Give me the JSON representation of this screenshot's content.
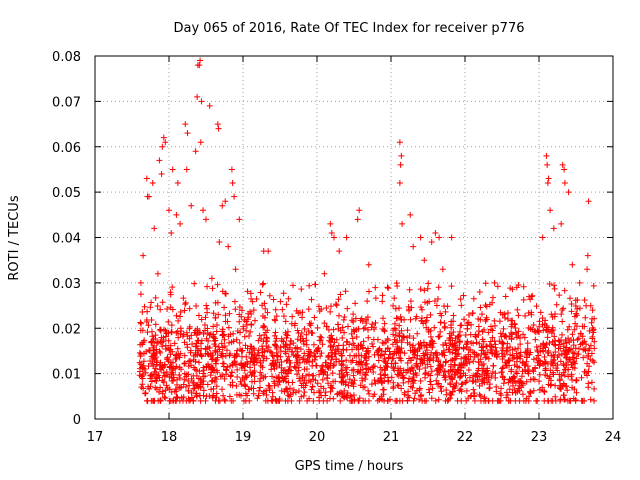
{
  "chart_data": {
    "type": "scatter",
    "title": "Day 065 of 2016, Rate Of TEC Index for receiver p776",
    "xlabel": "GPS time / hours",
    "ylabel": "ROTI / TECUs",
    "xlim": [
      17,
      24
    ],
    "ylim": [
      0,
      0.08
    ],
    "grid": true,
    "marker": "+",
    "color": "#ff0000",
    "x_ticks": [
      "17",
      "18",
      "19",
      "20",
      "21",
      "22",
      "23",
      "24"
    ],
    "y_ticks": [
      "0",
      "0.01",
      "0.02",
      "0.03",
      "0.04",
      "0.05",
      "0.06",
      "0.07",
      "0.08"
    ],
    "data_range": {
      "x_start": 17.6,
      "x_end": 23.75
    },
    "series": [
      {
        "name": "ROTI",
        "points": [
          [
            18.42,
            0.079
          ],
          [
            18.41,
            0.078
          ],
          [
            18.39,
            0.078
          ],
          [
            18.38,
            0.071
          ],
          [
            18.44,
            0.07
          ],
          [
            18.55,
            0.069
          ],
          [
            18.22,
            0.065
          ],
          [
            18.25,
            0.063
          ],
          [
            18.43,
            0.061
          ],
          [
            18.36,
            0.059
          ],
          [
            18.66,
            0.065
          ],
          [
            18.67,
            0.064
          ],
          [
            17.93,
            0.062
          ],
          [
            17.91,
            0.06
          ],
          [
            17.95,
            0.061
          ],
          [
            17.87,
            0.057
          ],
          [
            17.9,
            0.054
          ],
          [
            18.05,
            0.055
          ],
          [
            18.12,
            0.052
          ],
          [
            18.24,
            0.055
          ],
          [
            18.3,
            0.047
          ],
          [
            18.85,
            0.055
          ],
          [
            18.86,
            0.052
          ],
          [
            18.88,
            0.049
          ],
          [
            18.76,
            0.048
          ],
          [
            18.72,
            0.047
          ],
          [
            17.73,
            0.049
          ],
          [
            17.71,
            0.049
          ],
          [
            17.7,
            0.053
          ],
          [
            17.78,
            0.052
          ],
          [
            18.0,
            0.046
          ],
          [
            18.1,
            0.045
          ],
          [
            18.15,
            0.043
          ],
          [
            18.46,
            0.046
          ],
          [
            18.5,
            0.044
          ],
          [
            18.95,
            0.044
          ],
          [
            17.65,
            0.036
          ],
          [
            17.8,
            0.042
          ],
          [
            18.03,
            0.041
          ],
          [
            18.68,
            0.039
          ],
          [
            18.8,
            0.038
          ],
          [
            19.28,
            0.037
          ],
          [
            19.34,
            0.037
          ],
          [
            17.62,
            0.03
          ],
          [
            17.85,
            0.032
          ],
          [
            18.58,
            0.031
          ],
          [
            18.9,
            0.033
          ],
          [
            20.18,
            0.043
          ],
          [
            20.2,
            0.041
          ],
          [
            20.23,
            0.04
          ],
          [
            20.57,
            0.046
          ],
          [
            20.55,
            0.044
          ],
          [
            20.4,
            0.04
          ],
          [
            20.3,
            0.037
          ],
          [
            20.7,
            0.034
          ],
          [
            20.1,
            0.032
          ],
          [
            21.12,
            0.061
          ],
          [
            21.14,
            0.058
          ],
          [
            21.13,
            0.056
          ],
          [
            21.12,
            0.052
          ],
          [
            21.26,
            0.045
          ],
          [
            21.15,
            0.043
          ],
          [
            21.4,
            0.04
          ],
          [
            21.55,
            0.039
          ],
          [
            21.6,
            0.041
          ],
          [
            21.65,
            0.04
          ],
          [
            21.82,
            0.04
          ],
          [
            21.3,
            0.038
          ],
          [
            21.45,
            0.035
          ],
          [
            21.7,
            0.033
          ],
          [
            22.4,
            0.03
          ],
          [
            22.7,
            0.029
          ],
          [
            22.2,
            0.028
          ],
          [
            22.55,
            0.027
          ],
          [
            22.9,
            0.027
          ],
          [
            23.1,
            0.058
          ],
          [
            23.11,
            0.056
          ],
          [
            23.13,
            0.053
          ],
          [
            23.12,
            0.052
          ],
          [
            23.32,
            0.056
          ],
          [
            23.34,
            0.055
          ],
          [
            23.35,
            0.052
          ],
          [
            23.4,
            0.05
          ],
          [
            23.15,
            0.046
          ],
          [
            23.2,
            0.042
          ],
          [
            23.05,
            0.04
          ],
          [
            23.3,
            0.043
          ],
          [
            23.67,
            0.048
          ],
          [
            23.66,
            0.036
          ],
          [
            23.65,
            0.033
          ],
          [
            23.55,
            0.03
          ],
          [
            23.45,
            0.034
          ]
        ]
      }
    ],
    "dense_band": {
      "note": "dense cloud of thousands of points",
      "typical_min": 0.004,
      "typical_max": 0.03,
      "bulk_center": 0.013
    }
  }
}
